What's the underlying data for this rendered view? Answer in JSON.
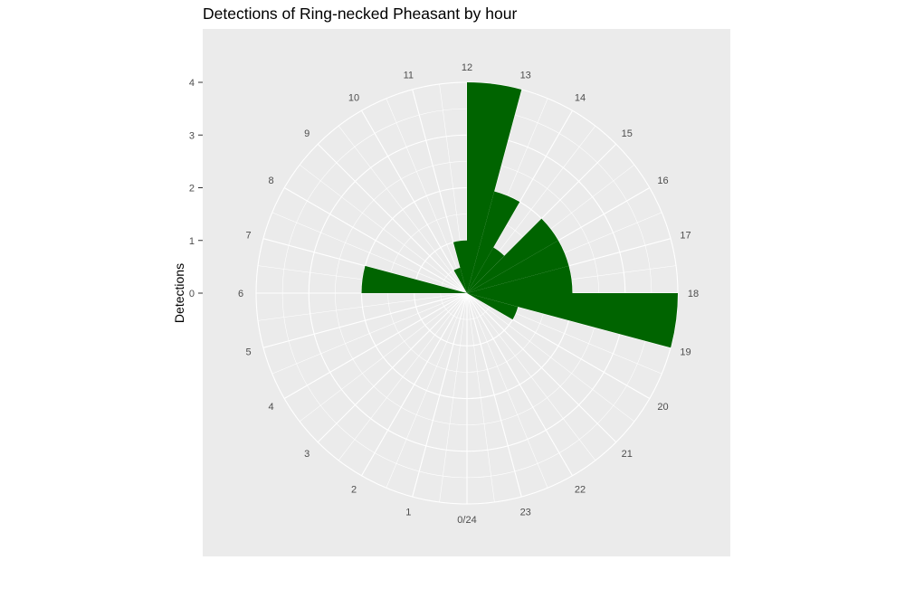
{
  "chart_data": {
    "type": "bar",
    "coord": "polar",
    "title": "Detections of Ring-necked Pheasant by hour",
    "xlabel": "",
    "ylabel": "Detections",
    "ylim": [
      0,
      4
    ],
    "y_ticks": [
      0,
      1,
      2,
      3,
      4
    ],
    "hour_labels": [
      "0/24",
      "1",
      "2",
      "3",
      "4",
      "5",
      "6",
      "7",
      "8",
      "9",
      "10",
      "11",
      "12",
      "13",
      "14",
      "15",
      "16",
      "17",
      "18",
      "19",
      "20",
      "21",
      "22",
      "23"
    ],
    "categories": [
      0,
      1,
      2,
      3,
      4,
      5,
      6,
      7,
      8,
      9,
      10,
      11,
      12,
      13,
      14,
      15,
      16,
      17,
      18,
      19,
      20,
      21,
      22,
      23
    ],
    "values": [
      0,
      0,
      0,
      0,
      0,
      0,
      2,
      0,
      0,
      0,
      0.5,
      1,
      4,
      2,
      1,
      2,
      2,
      2,
      4,
      1,
      0,
      0,
      0,
      0
    ],
    "bar_color": "#006400",
    "panel_background": "#EBEBEB",
    "grid": true
  }
}
